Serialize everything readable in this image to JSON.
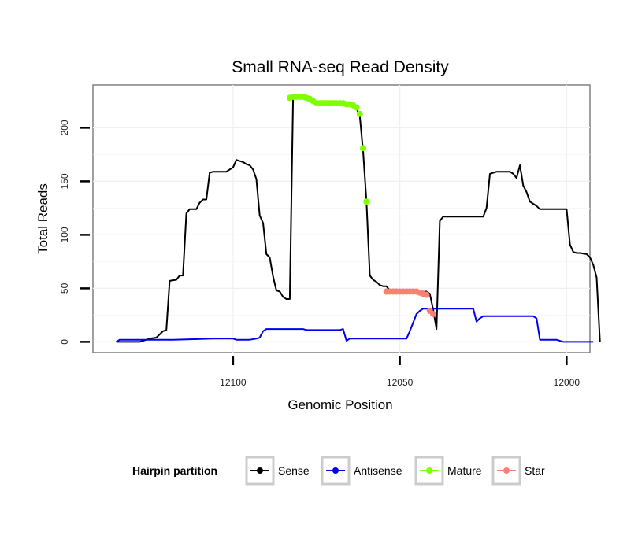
{
  "chart_data": {
    "type": "line",
    "title": "Small RNA-seq Read Density",
    "xlabel": "Genomic Position",
    "ylabel": "Total Reads",
    "xlim": [
      12142,
      11993
    ],
    "ylim": [
      -10,
      240
    ],
    "x_reversed": true,
    "x_ticks": [
      12100,
      12050,
      12000
    ],
    "y_ticks": [
      0,
      50,
      100,
      150,
      200
    ],
    "grid": true,
    "legend": {
      "title": "Hairpin partition",
      "position": "bottom",
      "entries": [
        "Sense",
        "Antisense",
        "Mature",
        "Star"
      ]
    },
    "colors": {
      "Sense": "#000000",
      "Antisense": "#0000ee",
      "Mature": "#7fff00",
      "Star": "#fa8072"
    },
    "series": [
      {
        "name": "Sense",
        "style": "line",
        "points": [
          [
            12135,
            0
          ],
          [
            12128,
            0
          ],
          [
            12125,
            3
          ],
          [
            12123,
            4
          ],
          [
            12121,
            10
          ],
          [
            12120,
            11
          ],
          [
            12119,
            57
          ],
          [
            12117,
            58
          ],
          [
            12116,
            62
          ],
          [
            12115,
            62
          ],
          [
            12114,
            120
          ],
          [
            12113,
            124
          ],
          [
            12111,
            124
          ],
          [
            12110,
            130
          ],
          [
            12109,
            133
          ],
          [
            12108,
            133
          ],
          [
            12107,
            158
          ],
          [
            12106,
            159
          ],
          [
            12102,
            159
          ],
          [
            12101,
            161
          ],
          [
            12100,
            163
          ],
          [
            12099,
            170
          ],
          [
            12098,
            169
          ],
          [
            12097,
            168
          ],
          [
            12096,
            166
          ],
          [
            12095,
            165
          ],
          [
            12094,
            161
          ],
          [
            12093,
            152
          ],
          [
            12092,
            118
          ],
          [
            12091,
            111
          ],
          [
            12090,
            82
          ],
          [
            12089,
            79
          ],
          [
            12088,
            61
          ],
          [
            12087,
            48
          ],
          [
            12086,
            47
          ],
          [
            12085,
            42
          ],
          [
            12084,
            40
          ],
          [
            12083,
            40
          ],
          [
            12082,
            228
          ],
          [
            12080,
            228
          ],
          [
            12076,
            226
          ],
          [
            12075,
            222
          ],
          [
            12065,
            222
          ],
          [
            12064,
            221
          ],
          [
            12063,
            218
          ],
          [
            12062,
            211
          ],
          [
            12061,
            178
          ],
          [
            12060,
            131
          ],
          [
            12059,
            62
          ],
          [
            12058,
            58
          ],
          [
            12057,
            56
          ],
          [
            12056,
            53
          ],
          [
            12055,
            52
          ],
          [
            12054,
            52
          ],
          [
            12053,
            48
          ],
          [
            12042,
            47
          ],
          [
            12041,
            45
          ],
          [
            12040,
            30
          ],
          [
            12039,
            12
          ],
          [
            12038,
            113
          ],
          [
            12037,
            117
          ],
          [
            12025,
            117
          ],
          [
            12024,
            125
          ],
          [
            12023,
            157
          ],
          [
            12022,
            158
          ],
          [
            12021,
            159
          ],
          [
            12017,
            159
          ],
          [
            12016,
            157
          ],
          [
            12015,
            153
          ],
          [
            12014,
            165
          ],
          [
            12013,
            146
          ],
          [
            12012,
            140
          ],
          [
            12011,
            131
          ],
          [
            12010,
            129
          ],
          [
            12009,
            127
          ],
          [
            12008,
            124
          ],
          [
            12000,
            124
          ],
          [
            11999,
            91
          ],
          [
            11998,
            84
          ],
          [
            11997,
            83
          ],
          [
            11996,
            83
          ],
          [
            11994,
            82
          ],
          [
            11993,
            79
          ],
          [
            11992,
            72
          ],
          [
            11991,
            60
          ],
          [
            11990,
            0
          ]
        ]
      },
      {
        "name": "Antisense",
        "style": "line",
        "points": [
          [
            12135,
            0
          ],
          [
            12134,
            2
          ],
          [
            12118,
            2
          ],
          [
            12106,
            3
          ],
          [
            12100,
            3
          ],
          [
            12099,
            2
          ],
          [
            12095,
            2
          ],
          [
            12093,
            3
          ],
          [
            12092,
            4
          ],
          [
            12091,
            10
          ],
          [
            12090,
            12
          ],
          [
            12079,
            12
          ],
          [
            12078,
            11
          ],
          [
            12068,
            11
          ],
          [
            12067,
            12
          ],
          [
            12066,
            1
          ],
          [
            12065,
            3
          ],
          [
            12048,
            3
          ],
          [
            12047,
            10
          ],
          [
            12046,
            18
          ],
          [
            12045,
            26
          ],
          [
            12044,
            29
          ],
          [
            12043,
            31
          ],
          [
            12040,
            31
          ],
          [
            12028,
            31
          ],
          [
            12027,
            19
          ],
          [
            12026,
            22
          ],
          [
            12025,
            24
          ],
          [
            12010,
            24
          ],
          [
            12009,
            22
          ],
          [
            12008,
            2
          ],
          [
            12003,
            2
          ],
          [
            12001,
            0
          ],
          [
            11992,
            0
          ]
        ]
      },
      {
        "name": "Mature",
        "style": "points",
        "points": [
          [
            12083,
            228
          ],
          [
            12082,
            229
          ],
          [
            12081,
            229
          ],
          [
            12080,
            229
          ],
          [
            12079,
            229
          ],
          [
            12078,
            228
          ],
          [
            12077,
            227
          ],
          [
            12076,
            225
          ],
          [
            12075,
            223
          ],
          [
            12074,
            223
          ],
          [
            12073,
            223
          ],
          [
            12072,
            223
          ],
          [
            12071,
            223
          ],
          [
            12070,
            223
          ],
          [
            12069,
            223
          ],
          [
            12068,
            223
          ],
          [
            12067,
            223
          ],
          [
            12066,
            222
          ],
          [
            12065,
            222
          ],
          [
            12064,
            221
          ],
          [
            12063,
            219
          ],
          [
            12062,
            213
          ],
          [
            12061,
            181
          ],
          [
            12060,
            131
          ]
        ]
      },
      {
        "name": "Star",
        "style": "points",
        "points": [
          [
            12054,
            47
          ],
          [
            12053,
            47
          ],
          [
            12052,
            47
          ],
          [
            12051,
            47
          ],
          [
            12050,
            47
          ],
          [
            12049,
            47
          ],
          [
            12048,
            47
          ],
          [
            12047,
            47
          ],
          [
            12046,
            47
          ],
          [
            12045,
            47
          ],
          [
            12044,
            46
          ],
          [
            12043,
            45
          ],
          [
            12042,
            44
          ],
          [
            12041,
            29
          ],
          [
            12040,
            26
          ]
        ]
      }
    ]
  }
}
